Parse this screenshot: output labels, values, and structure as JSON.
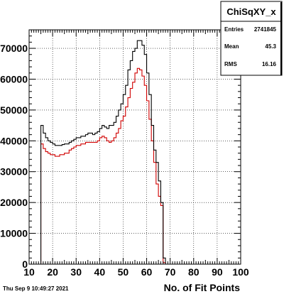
{
  "timestamp": "Thu Sep  9 10:49:27 2021",
  "stats": {
    "title": "ChiSqXY_x",
    "rows": [
      {
        "label": "Entries",
        "value": "2741845"
      },
      {
        "label": "Mean",
        "value": "45.3"
      },
      {
        "label": "RMS",
        "value": "16.16"
      }
    ]
  },
  "colors": {
    "series_black": "#000000",
    "series_red": "#d00000",
    "frame": "#000000",
    "grid": "#000000"
  },
  "chart_data": {
    "type": "histogram",
    "title": "",
    "xlabel": "No. of Fit Points",
    "ylabel": "",
    "xlim": [
      10,
      100
    ],
    "ylim": [
      0,
      76000
    ],
    "grid": true,
    "x_ticks": [
      10,
      20,
      30,
      40,
      50,
      60,
      70,
      80,
      90,
      100
    ],
    "y_ticks": [
      0,
      10000,
      20000,
      30000,
      40000,
      50000,
      60000,
      70000
    ],
    "bin_width": 1,
    "bin_edges_start": 10,
    "series": [
      {
        "values": [
          0,
          0,
          0,
          0,
          0,
          45000,
          42500,
          41000,
          40000,
          39500,
          39000,
          38500,
          38500,
          38500,
          38800,
          39000,
          39000,
          39500,
          40000,
          40500,
          41000,
          41000,
          41500,
          41500,
          42000,
          42500,
          42500,
          42000,
          42500,
          43000,
          44000,
          45000,
          44500,
          44000,
          45000,
          45000,
          46000,
          48000,
          50000,
          52000,
          55000,
          58000,
          63000,
          66000,
          69000,
          70000,
          72500,
          72500,
          71000,
          68000,
          62000,
          55000,
          45000,
          37000,
          33000,
          27000,
          20000,
          2000,
          0,
          0,
          0,
          0,
          0,
          0,
          0,
          0,
          0,
          0,
          0,
          0,
          0,
          0,
          0,
          0,
          0,
          0,
          0,
          0,
          0,
          0,
          0,
          0,
          0,
          0,
          0,
          0,
          0,
          0,
          0,
          0
        ]
      },
      {
        "values": [
          0,
          0,
          0,
          0,
          0,
          39000,
          37500,
          36500,
          36000,
          35500,
          35500,
          35000,
          35000,
          35500,
          35500,
          36000,
          36000,
          37000,
          37500,
          38000,
          38500,
          38500,
          39000,
          39000,
          39500,
          39500,
          39500,
          39500,
          39500,
          40000,
          41000,
          41500,
          41000,
          40000,
          39500,
          40000,
          41000,
          42500,
          44000,
          46500,
          48000,
          51000,
          54000,
          57000,
          59000,
          62000,
          63500,
          63000,
          61000,
          58000,
          53000,
          47000,
          40000,
          33000,
          26000,
          22000,
          19000,
          500,
          0,
          0,
          0,
          0,
          0,
          0,
          0,
          0,
          0,
          0,
          0,
          0,
          0,
          0,
          0,
          0,
          0,
          0,
          0,
          0,
          0,
          0,
          0,
          0,
          0,
          0,
          0,
          0,
          0,
          0,
          0,
          0
        ]
      }
    ]
  }
}
